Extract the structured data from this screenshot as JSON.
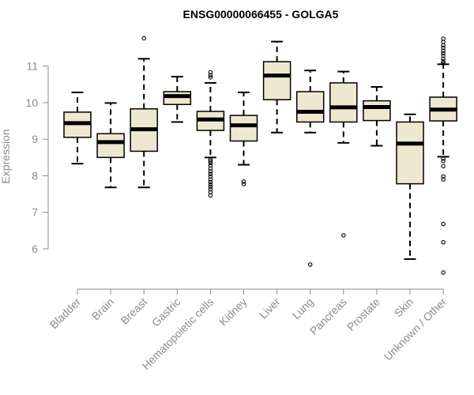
{
  "chart_data": {
    "type": "boxplot",
    "title": "ENSG00000066455 - GOLGA5",
    "xlabel": "",
    "ylabel": "Expression",
    "ylim": [
      5.2,
      11.9
    ],
    "yticks": [
      6,
      7,
      8,
      9,
      10,
      11
    ],
    "grid": false,
    "box_fill": "#efe8d0",
    "box_stroke": "#000000",
    "axis_color": "#8c8c8c",
    "categories": [
      "Bladder",
      "Brain",
      "Breast",
      "Gastric",
      "Hematopoietic cells",
      "Kidney",
      "Liver",
      "Lung",
      "Pancreas",
      "Prostate",
      "Skin",
      "Unknown / Other"
    ],
    "boxes": [
      {
        "name": "Bladder",
        "whisker_low": 8.33,
        "q1": 9.05,
        "median": 9.44,
        "q3": 9.74,
        "whisker_high": 10.28,
        "outliers": []
      },
      {
        "name": "Brain",
        "whisker_low": 7.68,
        "q1": 8.5,
        "median": 8.92,
        "q3": 9.15,
        "whisker_high": 9.99,
        "outliers": []
      },
      {
        "name": "Breast",
        "whisker_low": 7.68,
        "q1": 8.67,
        "median": 9.27,
        "q3": 9.83,
        "whisker_high": 11.2,
        "outliers": [
          11.76
        ]
      },
      {
        "name": "Gastric",
        "whisker_low": 9.47,
        "q1": 9.95,
        "median": 10.18,
        "q3": 10.3,
        "whisker_high": 10.71,
        "outliers": []
      },
      {
        "name": "Hematopoietic cells",
        "whisker_low": 8.5,
        "q1": 9.24,
        "median": 9.54,
        "q3": 9.76,
        "whisker_high": 10.54,
        "outliers": [
          10.69,
          10.75,
          10.83,
          8.44,
          8.4,
          8.35,
          8.28,
          8.2,
          8.12,
          8.05,
          7.98,
          7.9,
          7.83,
          7.76,
          7.7,
          7.63,
          7.55,
          7.46
        ]
      },
      {
        "name": "Kidney",
        "whisker_low": 8.3,
        "q1": 8.95,
        "median": 9.38,
        "q3": 9.65,
        "whisker_high": 10.28,
        "outliers": [
          7.84,
          7.77
        ]
      },
      {
        "name": "Liver",
        "whisker_low": 9.18,
        "q1": 10.08,
        "median": 10.74,
        "q3": 11.12,
        "whisker_high": 11.67,
        "outliers": []
      },
      {
        "name": "Lung",
        "whisker_low": 9.18,
        "q1": 9.47,
        "median": 9.75,
        "q3": 10.3,
        "whisker_high": 10.88,
        "outliers": [
          5.57
        ]
      },
      {
        "name": "Pancreas",
        "whisker_low": 8.9,
        "q1": 9.47,
        "median": 9.87,
        "q3": 10.54,
        "whisker_high": 10.85,
        "outliers": [
          6.37
        ]
      },
      {
        "name": "Prostate",
        "whisker_low": 8.82,
        "q1": 9.51,
        "median": 9.88,
        "q3": 10.05,
        "whisker_high": 10.43,
        "outliers": []
      },
      {
        "name": "Skin",
        "whisker_low": 5.72,
        "q1": 7.78,
        "median": 8.88,
        "q3": 9.47,
        "whisker_high": 9.68,
        "outliers": []
      },
      {
        "name": "Unknown / Other",
        "whisker_low": 8.52,
        "q1": 9.5,
        "median": 9.81,
        "q3": 10.15,
        "whisker_high": 11.05,
        "outliers": [
          11.75,
          11.66,
          11.57,
          11.5,
          11.42,
          11.35,
          11.28,
          11.2,
          11.13,
          11.08,
          8.47,
          8.4,
          8.26,
          7.98,
          7.9,
          6.68,
          6.18,
          5.35
        ]
      }
    ]
  }
}
